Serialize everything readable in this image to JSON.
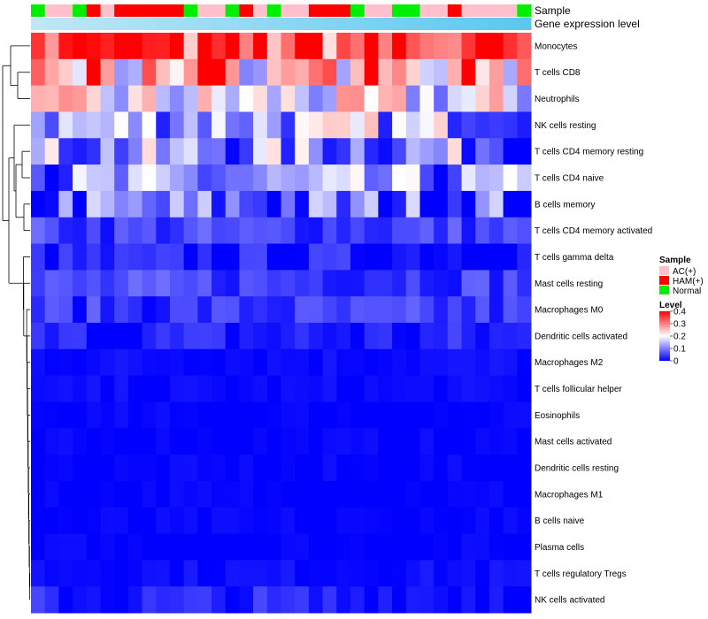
{
  "chart_data": {
    "type": "heatmap",
    "title": "",
    "annotations": {
      "sample_label": "Sample",
      "gene_label": "Gene expression level"
    },
    "sample_groups": [
      "N",
      "A",
      "A",
      "N",
      "H",
      "A",
      "H",
      "H",
      "H",
      "H",
      "H",
      "N",
      "A",
      "A",
      "N",
      "H",
      "A",
      "N",
      "A",
      "A",
      "H",
      "H",
      "H",
      "N",
      "A",
      "A",
      "N",
      "N",
      "A",
      "A",
      "H",
      "A",
      "A",
      "A",
      "A",
      "N"
    ],
    "legend_sample": {
      "title": "Sample",
      "entries": [
        {
          "key": "A",
          "label": "AC(+)",
          "color": "#FFC0CB"
        },
        {
          "key": "H",
          "label": "HAM(+)",
          "color": "#FF0000"
        },
        {
          "key": "N",
          "label": "Normal",
          "color": "#00EE00"
        }
      ]
    },
    "legend_level": {
      "title": "Level",
      "ticks": [
        {
          "value": 0.4,
          "label": "0.4"
        },
        {
          "value": 0.3,
          "label": "0.3"
        },
        {
          "value": 0.2,
          "label": "0.2"
        },
        {
          "value": 0.1,
          "label": "0.1"
        },
        {
          "value": 0,
          "label": "0"
        }
      ],
      "range": [
        0,
        0.4
      ]
    },
    "colors": {
      "low": "#0000FF",
      "mid": "#FFFFFF",
      "high": "#FF0000",
      "gene_bar": "#5BC8F0",
      "gene_bar_light": "#BFE7F6"
    },
    "rows": [
      {
        "name": "Monocytes",
        "base": 0.33
      },
      {
        "name": "T cells CD8",
        "base": 0.22
      },
      {
        "name": "Neutrophils",
        "base": 0.17
      },
      {
        "name": "NK cells resting",
        "base": 0.14
      },
      {
        "name": "T cells CD4 memory resting",
        "base": 0.11
      },
      {
        "name": "T cells CD4 naive",
        "base": 0.09
      },
      {
        "name": "B cells memory",
        "base": 0.07
      },
      {
        "name": "T cells CD4 memory activated",
        "base": 0.05
      },
      {
        "name": "T cells gamma delta",
        "base": 0.02
      },
      {
        "name": "Mast cells resting",
        "base": 0.05
      },
      {
        "name": "Macrophages M0",
        "base": 0.04
      },
      {
        "name": "Dendritic cells activated",
        "base": 0.02
      },
      {
        "name": "Macrophages M2",
        "base": 0.01
      },
      {
        "name": "T cells follicular helper",
        "base": 0.005
      },
      {
        "name": "Eosinophils",
        "base": 0.0
      },
      {
        "name": "Mast cells activated",
        "base": 0.0
      },
      {
        "name": "Dendritic cells resting",
        "base": 0.0
      },
      {
        "name": "Macrophages M1",
        "base": 0.0
      },
      {
        "name": "B cells naive",
        "base": 0.0
      },
      {
        "name": "Plasma cells",
        "base": 0.0
      },
      {
        "name": "T cells regulatory  Tregs",
        "base": 0.01
      },
      {
        "name": "NK cells activated",
        "base": 0.02
      }
    ]
  }
}
